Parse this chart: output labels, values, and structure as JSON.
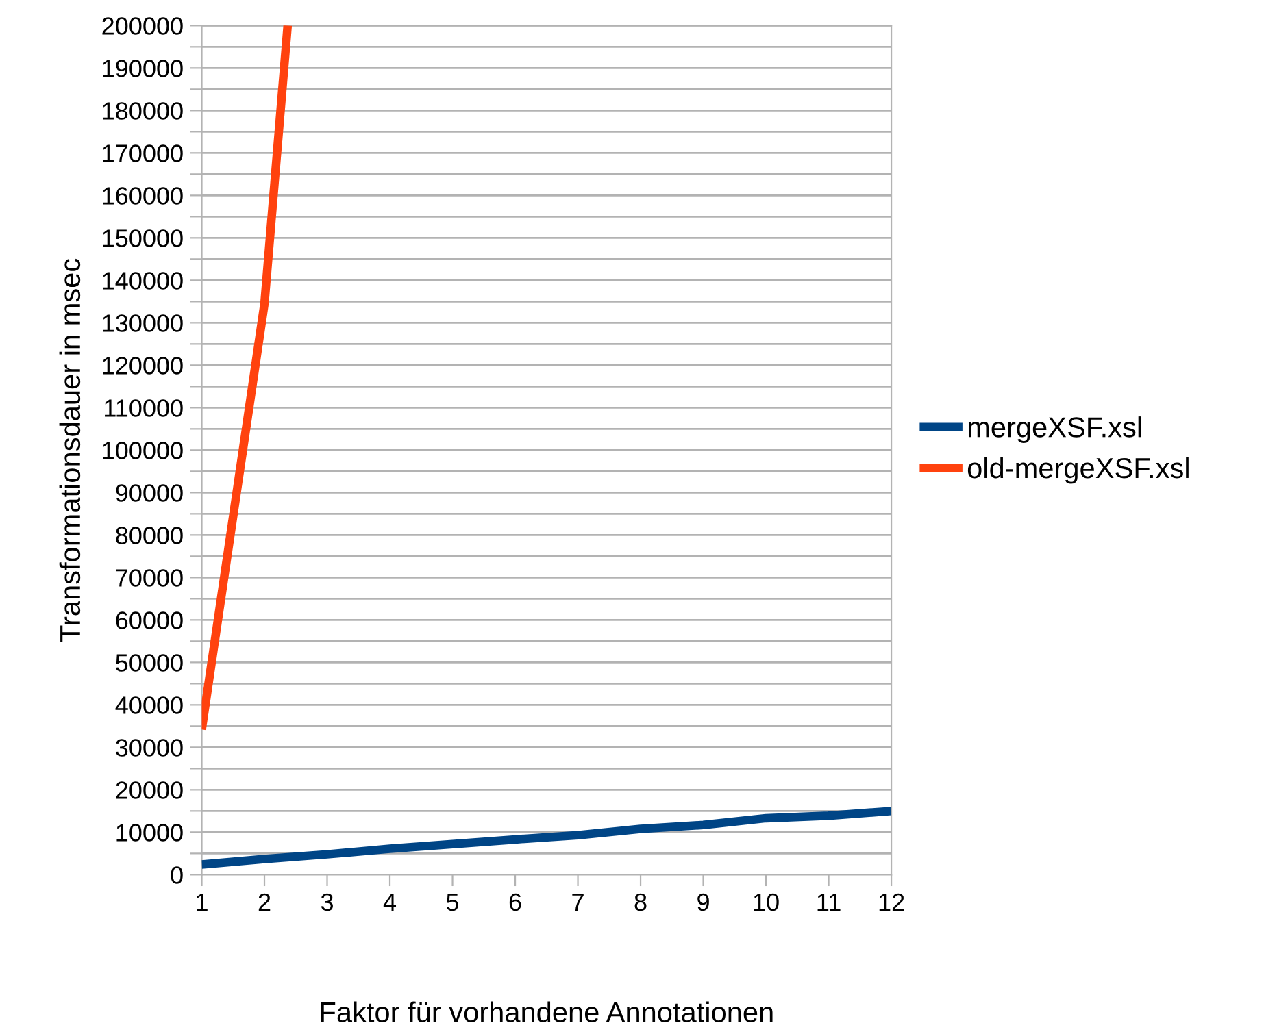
{
  "chart_data": {
    "type": "line",
    "xlabel": "Faktor für vorhandene Annotationen",
    "ylabel": "Transformationsdauer in msec",
    "x": [
      1,
      2,
      3,
      4,
      5,
      6,
      7,
      8,
      9,
      10,
      11,
      12
    ],
    "series": [
      {
        "name": "mergeXSF.xsl",
        "color": "#004586",
        "values": [
          2400,
          3700,
          4800,
          6100,
          7200,
          8300,
          9300,
          10800,
          11700,
          13300,
          13900,
          15000
        ]
      },
      {
        "name": "old-mergeXSF.xsl",
        "color": "#ff420e",
        "x": [
          1,
          2,
          2.37
        ],
        "values": [
          34200,
          134500,
          200000
        ]
      }
    ],
    "xlim": [
      1,
      12
    ],
    "xticks": [
      1,
      2,
      3,
      4,
      5,
      6,
      7,
      8,
      9,
      10,
      11,
      12
    ],
    "ylim": [
      0,
      200000
    ],
    "yticks": [
      0,
      {
        "value": 5000,
        "label": null
      },
      10000,
      {
        "value": 15000,
        "label": null
      },
      20000,
      {
        "value": 25000,
        "label": null
      },
      30000,
      {
        "value": 35000,
        "label": null
      },
      40000,
      {
        "value": 45000,
        "label": null
      },
      50000,
      {
        "value": 55000,
        "label": null
      },
      60000,
      {
        "value": 65000,
        "label": null
      },
      70000,
      {
        "value": 75000,
        "label": null
      },
      80000,
      {
        "value": 85000,
        "label": null
      },
      90000,
      {
        "value": 95000,
        "label": null
      },
      100000,
      {
        "value": 105000,
        "label": null
      },
      110000,
      {
        "value": 115000,
        "label": null
      },
      120000,
      {
        "value": 125000,
        "label": null
      },
      130000,
      {
        "value": 135000,
        "label": null
      },
      140000,
      {
        "value": 145000,
        "label": null
      },
      150000,
      {
        "value": 155000,
        "label": null
      },
      160000,
      {
        "value": 165000,
        "label": null
      },
      170000,
      {
        "value": 175000,
        "label": null
      },
      180000,
      {
        "value": 185000,
        "label": null
      },
      190000,
      {
        "value": 195000,
        "label": null
      },
      200000
    ],
    "grid": "y",
    "legend": "right",
    "marker": "none",
    "line_style": "solid"
  }
}
